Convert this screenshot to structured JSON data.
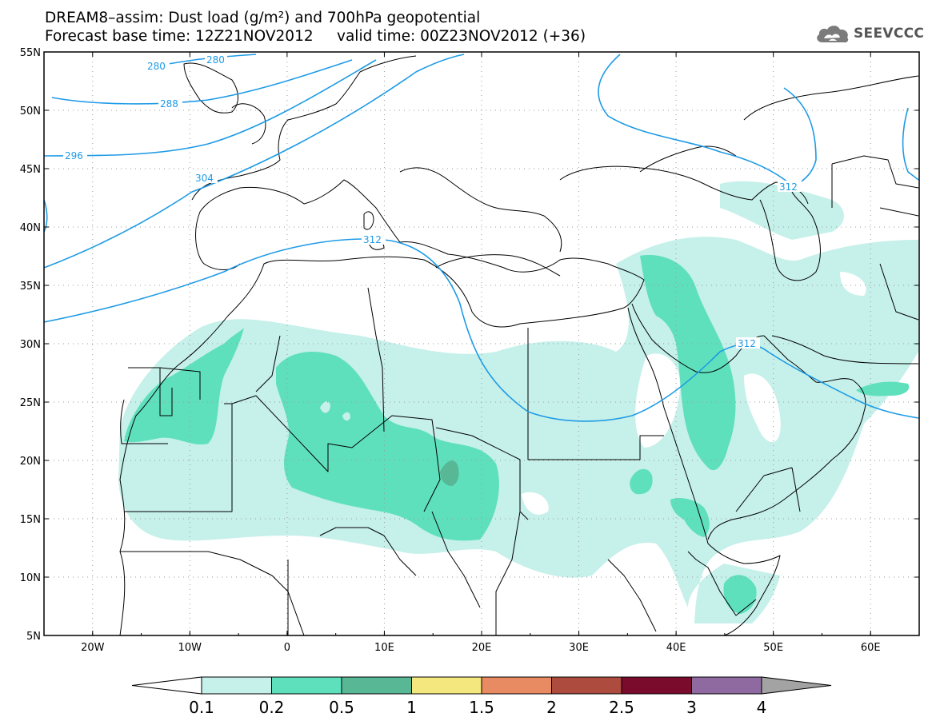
{
  "header": {
    "title_line1": "DREAM8–assim: Dust load (g/m²) and 700hPa geopotential",
    "title_line2": "Forecast base time: 12Z21NOV2012     valid time: 00Z23NOV2012 (+36)",
    "logo_text": "SEEVCCC"
  },
  "map": {
    "lon_range": [
      -25,
      65
    ],
    "lat_range": [
      5,
      55
    ],
    "lat_ticks": [
      55,
      50,
      45,
      40,
      35,
      30,
      25,
      20,
      15,
      10,
      5
    ],
    "lat_labels": [
      "55N",
      "50N",
      "45N",
      "40N",
      "35N",
      "30N",
      "25N",
      "20N",
      "15N",
      "10N",
      "5N"
    ],
    "lon_ticks": [
      -20,
      -10,
      0,
      10,
      20,
      30,
      40,
      50,
      60
    ],
    "lon_labels": [
      "20W",
      "10W",
      "0",
      "10E",
      "20E",
      "30E",
      "40E",
      "50E",
      "60E"
    ],
    "contour_labels": [
      "280",
      "288",
      "296",
      "304",
      "312",
      "312",
      "312",
      "280"
    ],
    "contour_color": "#1e9be6"
  },
  "colorbar": {
    "levels": [
      "0.1",
      "0.2",
      "0.5",
      "1",
      "1.5",
      "2",
      "2.5",
      "3",
      "4"
    ],
    "colors": [
      "#c6f0ea",
      "#5fe0bc",
      "#58b896",
      "#f3e77d",
      "#e98b62",
      "#ad4b3e",
      "#7a0b2c",
      "#8e6aa0"
    ],
    "under_color": "#ffffff",
    "over_color": "#a3a3a3"
  }
}
